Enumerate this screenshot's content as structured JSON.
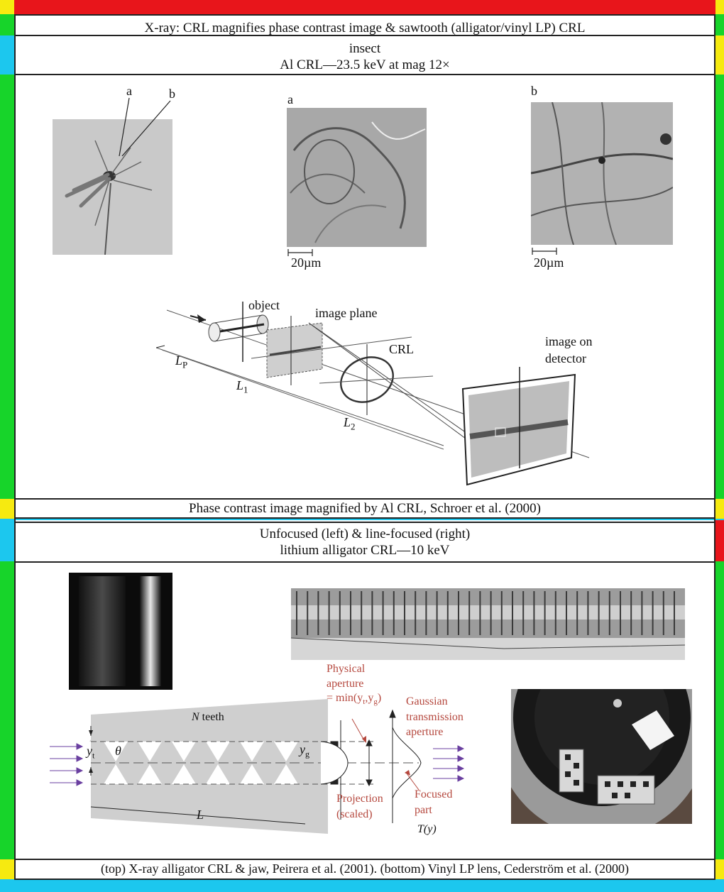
{
  "header": {
    "title": "X-ray: CRL magnifies phase contrast image & sawtooth (alligator/vinyl LP) CRL"
  },
  "panel1": {
    "heading_line1": "insect",
    "heading_line2": "Al CRL—23.5 keV at mag 12×",
    "photo_labels": {
      "a": "a",
      "b": "b",
      "img_a": "a",
      "img_b": "b"
    },
    "scale_a": "20µm",
    "scale_b": "20µm",
    "schematic": {
      "object": "object",
      "image_plane": "image plane",
      "crl": "CRL",
      "image_on": "image on",
      "detector": "detector",
      "lp": "L",
      "lp_sub": "P",
      "l1": "L",
      "l1_sub": "1",
      "l2": "L",
      "l2_sub": "2"
    },
    "caption": "Phase contrast image magnified by Al CRL, Schroer et al. (2000)"
  },
  "panel2": {
    "heading_line1": "Unfocused (left) & line-focused (right)",
    "heading_line2": "lithium alligator CRL—10 keV",
    "diagram": {
      "n_teeth_n": "N",
      "n_teeth": " teeth",
      "yt": "y",
      "yt_sub": "t",
      "theta": "θ",
      "yg": "y",
      "yg_sub": "g",
      "L": "L",
      "physical": "Physical",
      "aperture": "aperture",
      "min_formula": "= min(y",
      "min_t": "t",
      "min_comma": ",y",
      "min_g": "g",
      "min_close": ")",
      "gaussian": "Gaussian",
      "transmission": "transmission",
      "aperture2": "aperture",
      "projection": "Projection",
      "scaled": "(scaled)",
      "focused": "Focused",
      "part": "part",
      "ty": "T(y)"
    },
    "caption": "(top) X-ray alligator CRL & jaw, Peirera et al. (2001). (bottom) Vinyl LP lens, Cederström et al. (2000)"
  },
  "colors": {
    "red": "#e8151b",
    "green": "#17d42a",
    "cyan": "#1cc7ee",
    "yellow": "#f6ea10",
    "accent_red_text": "#b5483e"
  }
}
